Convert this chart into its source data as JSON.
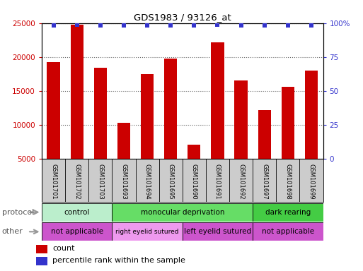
{
  "title": "GDS1983 / 93126_at",
  "samples": [
    "GSM101701",
    "GSM101702",
    "GSM101703",
    "GSM101693",
    "GSM101694",
    "GSM101695",
    "GSM101690",
    "GSM101691",
    "GSM101692",
    "GSM101697",
    "GSM101698",
    "GSM101699"
  ],
  "counts": [
    19200,
    24800,
    18400,
    10300,
    17500,
    19800,
    7000,
    22100,
    16500,
    12100,
    15600,
    18000
  ],
  "percentile_ranks": [
    98,
    99,
    98,
    98,
    98,
    98,
    98,
    99,
    98,
    98,
    98,
    98
  ],
  "ylim_left": [
    5000,
    25000
  ],
  "ylim_right": [
    0,
    100
  ],
  "yticks_left": [
    5000,
    10000,
    15000,
    20000,
    25000
  ],
  "yticks_right": [
    0,
    25,
    50,
    75,
    100
  ],
  "bar_color": "#cc0000",
  "dot_color": "#3333cc",
  "protocol_groups": [
    {
      "label": "control",
      "start": 0,
      "end": 3,
      "color": "#bbeecc"
    },
    {
      "label": "monocular deprivation",
      "start": 3,
      "end": 9,
      "color": "#66dd66"
    },
    {
      "label": "dark rearing",
      "start": 9,
      "end": 12,
      "color": "#44cc44"
    }
  ],
  "other_groups": [
    {
      "label": "not applicable",
      "start": 0,
      "end": 3,
      "color": "#cc55cc"
    },
    {
      "label": "right eyelid sutured",
      "start": 3,
      "end": 6,
      "color": "#ee99ee"
    },
    {
      "label": "left eyelid sutured",
      "start": 6,
      "end": 9,
      "color": "#cc55cc"
    },
    {
      "label": "not applicable",
      "start": 9,
      "end": 12,
      "color": "#cc55cc"
    }
  ],
  "protocol_label": "protocol",
  "other_label": "other",
  "legend_count_label": "count",
  "legend_pct_label": "percentile rank within the sample",
  "grid_color": "#888888",
  "background_color": "#ffffff",
  "tick_label_color_left": "#cc0000",
  "tick_label_color_right": "#3333cc",
  "sample_bg_color": "#cccccc",
  "arrow_color": "#999999"
}
